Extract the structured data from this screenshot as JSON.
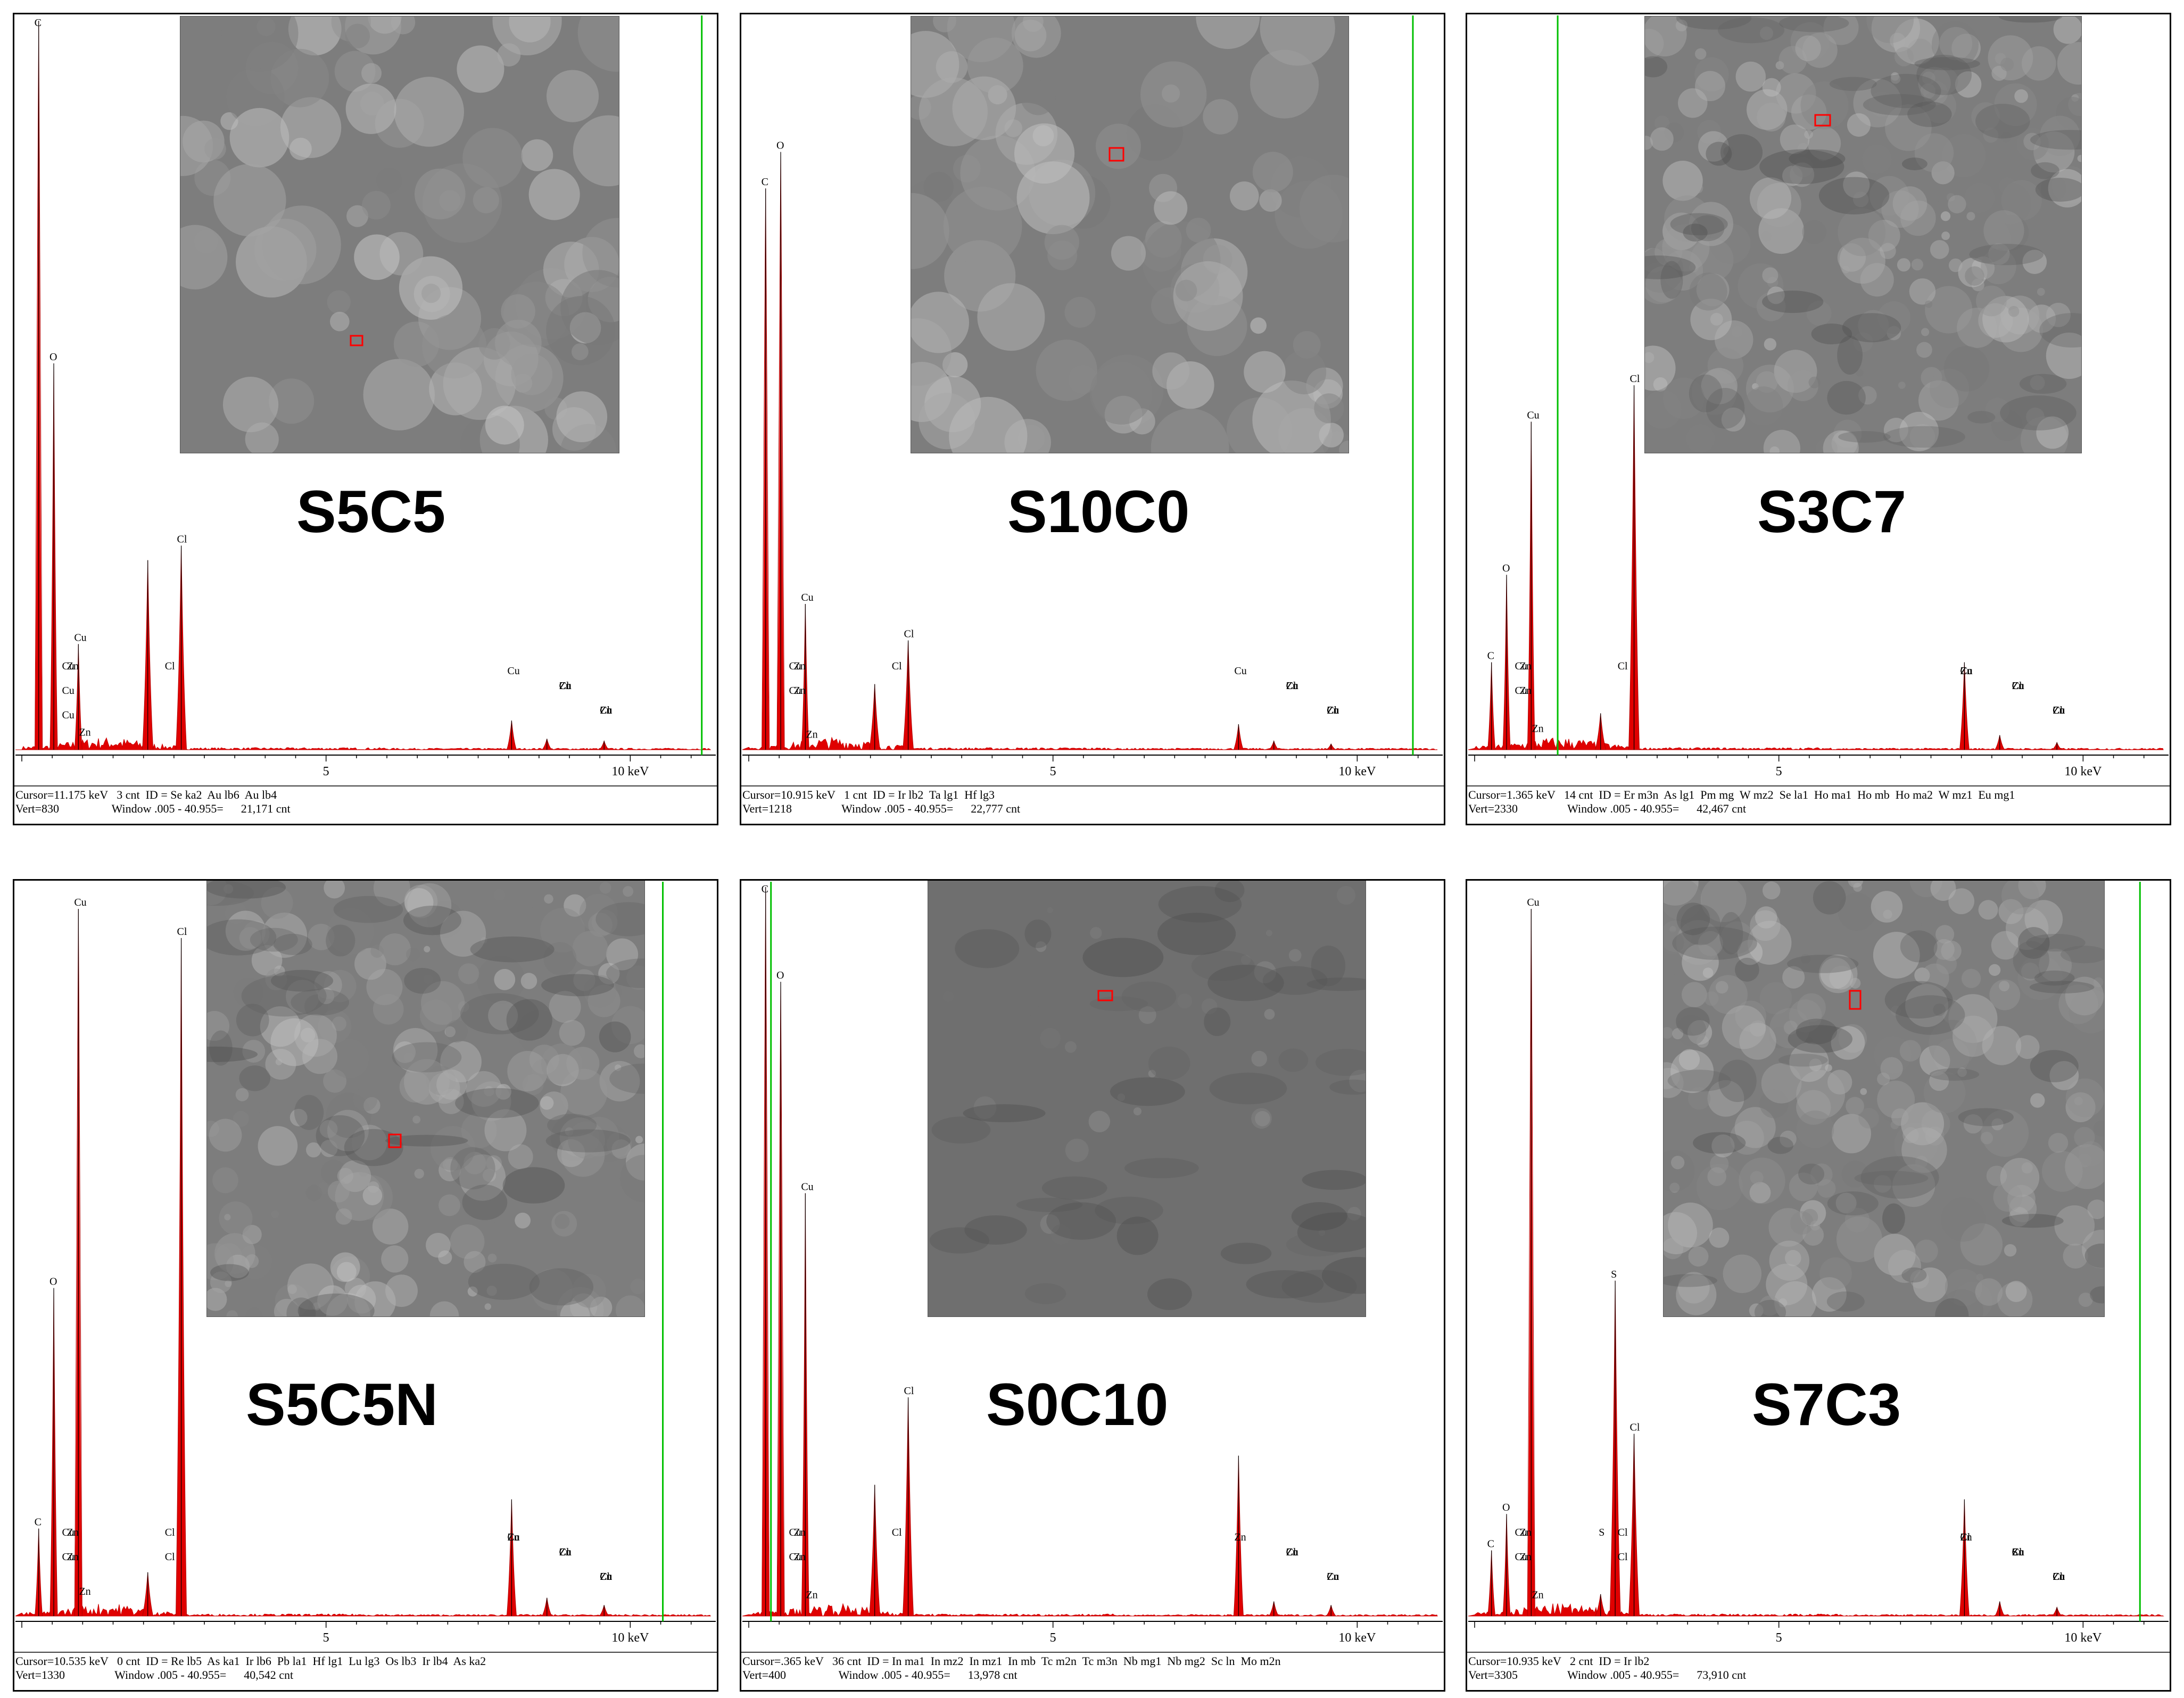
{
  "chart_data": [
    {
      "type": "line",
      "sample_label": "S5C5",
      "axis": {
        "x_ticks": [
          "5",
          "10 keV"
        ],
        "xlim_keV": [
          0,
          11.3
        ]
      },
      "cursor_keV": 11.175,
      "status_line1": "Cursor=11.175 keV   3 cnt  ID = Se ka2  Au lb6  Au lb4",
      "status_line2": "Vert=830                  Window .005 - 40.955=      21,171 cnt",
      "peaks": [
        {
          "element": "C",
          "energy": 0.277,
          "height": 1.0
        },
        {
          "element": "O",
          "energy": 0.525,
          "height": 0.53
        },
        {
          "element": "Cu",
          "energy": 0.93,
          "height": 0.145
        },
        {
          "element": "",
          "energy": 2.07,
          "height": 0.26
        },
        {
          "element": "Cl",
          "energy": 2.62,
          "height": 0.28
        },
        {
          "element": "Cu",
          "energy": 8.05,
          "height": 0.04
        },
        {
          "element": "Zn",
          "energy": 8.63,
          "height": 0.015
        },
        {
          "element": "Zn",
          "energy": 9.57,
          "height": 0.012
        }
      ],
      "peak_labels": [
        "C",
        "O",
        "Cu",
        "Cu",
        "Cl",
        "Cl",
        "Cl",
        "Cu",
        "Zn",
        "Cu",
        "Cu",
        "Cu",
        "Zn",
        "Zn",
        "Zn",
        "Cu",
        "Cl"
      ]
    },
    {
      "type": "line",
      "sample_label": "S10C0",
      "axis": {
        "x_ticks": [
          "5",
          "10 keV"
        ],
        "xlim_keV": [
          0,
          11.3
        ]
      },
      "cursor_keV": 10.915,
      "status_line1": "Cursor=10.915 keV   1 cnt  ID = Ir lb2  Ta lg1  Hf lg3",
      "status_line2": "Vert=1218                 Window .005 - 40.955=      22,777 cnt",
      "peaks": [
        {
          "element": "C",
          "energy": 0.277,
          "height": 0.77
        },
        {
          "element": "O",
          "energy": 0.525,
          "height": 0.82
        },
        {
          "element": "Cu",
          "energy": 0.93,
          "height": 0.2
        },
        {
          "element": "",
          "energy": 2.07,
          "height": 0.09
        },
        {
          "element": "Cl",
          "energy": 2.62,
          "height": 0.15
        },
        {
          "element": "Cu",
          "energy": 8.05,
          "height": 0.035
        },
        {
          "element": "Zn",
          "energy": 8.63,
          "height": 0.012
        },
        {
          "element": "Zn",
          "energy": 9.57,
          "height": 0.008
        }
      ],
      "peak_labels": [
        "C",
        "O",
        "Cu",
        "Cl",
        "Cl",
        "Cl",
        "Cu",
        "Zn",
        "Zn",
        "Cu",
        "Cu",
        "Cu",
        "Cu",
        "Zn",
        "Zn",
        "Zn",
        "Cl"
      ]
    },
    {
      "type": "line",
      "sample_label": "S3C7",
      "axis": {
        "x_ticks": [
          "5",
          "10 keV"
        ],
        "xlim_keV": [
          0,
          11.3
        ]
      },
      "cursor_keV": 1.365,
      "status_line1": "Cursor=1.365 keV   14 cnt  ID = Er m3n  As lg1  Pm mg  W mz2  Se la1  Ho ma1  Ho mb  Ho ma2  W mz1  Eu mg1",
      "status_line2": "Vert=2330                 Window .005 - 40.955=      42,467 cnt",
      "peaks": [
        {
          "element": "C",
          "energy": 0.277,
          "height": 0.12
        },
        {
          "element": "O",
          "energy": 0.525,
          "height": 0.24
        },
        {
          "element": "Cu",
          "energy": 0.93,
          "height": 0.45
        },
        {
          "element": "",
          "energy": 2.07,
          "height": 0.05
        },
        {
          "element": "Cl",
          "energy": 2.62,
          "height": 0.5
        },
        {
          "element": "Cu",
          "energy": 8.05,
          "height": 0.12
        },
        {
          "element": "Zn",
          "energy": 8.63,
          "height": 0.02
        },
        {
          "element": "Zn",
          "energy": 9.57,
          "height": 0.01
        }
      ],
      "peak_labels": [
        "C",
        "O",
        "Cu",
        "Cl",
        "Cl",
        "Cl",
        "Cu",
        "Cu",
        "Zn",
        "Zn",
        "Zn",
        "Cu",
        "Cu",
        "Zn",
        "Zn",
        "Zn",
        "Cl",
        "Cu"
      ]
    },
    {
      "type": "line",
      "sample_label": "S5C5N",
      "axis": {
        "x_ticks": [
          "5",
          "10 keV"
        ],
        "xlim_keV": [
          0,
          11.3
        ]
      },
      "cursor_keV": 10.535,
      "status_line1": "Cursor=10.535 keV   0 cnt  ID = Re lb5  As ka1  Ir lb6  Pb la1  Hf lg1  Lu lg3  Os lb3  Ir lb4  As ka2",
      "status_line2": "Vert=1330                 Window .005 - 40.955=      40,542 cnt",
      "peaks": [
        {
          "element": "C",
          "energy": 0.277,
          "height": 0.12
        },
        {
          "element": "O",
          "energy": 0.525,
          "height": 0.45
        },
        {
          "element": "Cu",
          "energy": 0.93,
          "height": 0.97
        },
        {
          "element": "",
          "energy": 2.07,
          "height": 0.06
        },
        {
          "element": "Cl",
          "energy": 2.62,
          "height": 0.93
        },
        {
          "element": "Cu",
          "energy": 8.05,
          "height": 0.16
        },
        {
          "element": "Zn",
          "energy": 8.63,
          "height": 0.025
        },
        {
          "element": "Zn",
          "energy": 9.57,
          "height": 0.015
        }
      ],
      "peak_labels": [
        "C",
        "O",
        "Cu",
        "Cu",
        "Zn",
        "Cl",
        "Cl",
        "Cl",
        "Cu",
        "Cu",
        "Zn",
        "Zn",
        "Cu",
        "Cu",
        "Zn",
        "Zn",
        "Zn",
        "Cl",
        "Cl"
      ]
    },
    {
      "type": "line",
      "sample_label": "S0C10",
      "axis": {
        "x_ticks": [
          "5",
          "10 keV"
        ],
        "xlim_keV": [
          0,
          11.3
        ]
      },
      "cursor_keV": 0.365,
      "status_line1": "Cursor=.365 keV   36 cnt  ID = In ma1  In mz2  In mz1  In mb  Tc m2n  Tc m3n  Nb mg1  Nb mg2  Sc ln  Mo m2n",
      "status_line2": "Vert=400                  Window .005 - 40.955=      13,978 cnt",
      "peaks": [
        {
          "element": "C",
          "energy": 0.277,
          "height": 1.0
        },
        {
          "element": "O",
          "energy": 0.525,
          "height": 0.87
        },
        {
          "element": "Cu",
          "energy": 0.93,
          "height": 0.58
        },
        {
          "element": "",
          "energy": 2.07,
          "height": 0.18
        },
        {
          "element": "Cl",
          "energy": 2.62,
          "height": 0.3
        },
        {
          "element": "Cu",
          "energy": 8.05,
          "height": 0.22
        },
        {
          "element": "Zn",
          "energy": 8.63,
          "height": 0.02
        },
        {
          "element": "Zn",
          "energy": 9.57,
          "height": 0.015
        }
      ],
      "peak_labels": [
        "C",
        "O",
        "Cu",
        "Cl",
        "Cl",
        "Cl",
        "Cu",
        "Cu",
        "Zn",
        "Zn",
        "Zn",
        "Cu",
        "Cu",
        "Zn",
        "Zn",
        "Zn"
      ]
    },
    {
      "type": "line",
      "sample_label": "S7C3",
      "axis": {
        "x_ticks": [
          "5",
          "10 keV"
        ],
        "xlim_keV": [
          0,
          11.3
        ]
      },
      "cursor_keV": 10.935,
      "status_line1": "Cursor=10.935 keV   2 cnt  ID = Ir lb2",
      "status_line2": "Vert=3305                 Window .005 - 40.955=      73,910 cnt",
      "peaks": [
        {
          "element": "C",
          "energy": 0.277,
          "height": 0.09
        },
        {
          "element": "O",
          "energy": 0.525,
          "height": 0.14
        },
        {
          "element": "Cu",
          "energy": 0.93,
          "height": 0.97
        },
        {
          "element": "S",
          "energy": 2.31,
          "height": 0.46
        },
        {
          "element": "",
          "energy": 2.07,
          "height": 0.03
        },
        {
          "element": "Cl",
          "energy": 2.62,
          "height": 0.25
        },
        {
          "element": "Cu",
          "energy": 8.05,
          "height": 0.16
        },
        {
          "element": "Zn",
          "energy": 8.63,
          "height": 0.02
        },
        {
          "element": "Zn",
          "energy": 9.57,
          "height": 0.012
        }
      ],
      "peak_labels": [
        "C",
        "O",
        "Cu",
        "Cu",
        "Zn",
        "Zn",
        "Zn",
        "S",
        "S",
        "S",
        "Cl",
        "Cl",
        "Cl",
        "Cu",
        "Cu",
        "Zn",
        "Zn",
        "Zn",
        "Cu",
        "Cl",
        "Cl",
        "Cl"
      ]
    }
  ]
}
